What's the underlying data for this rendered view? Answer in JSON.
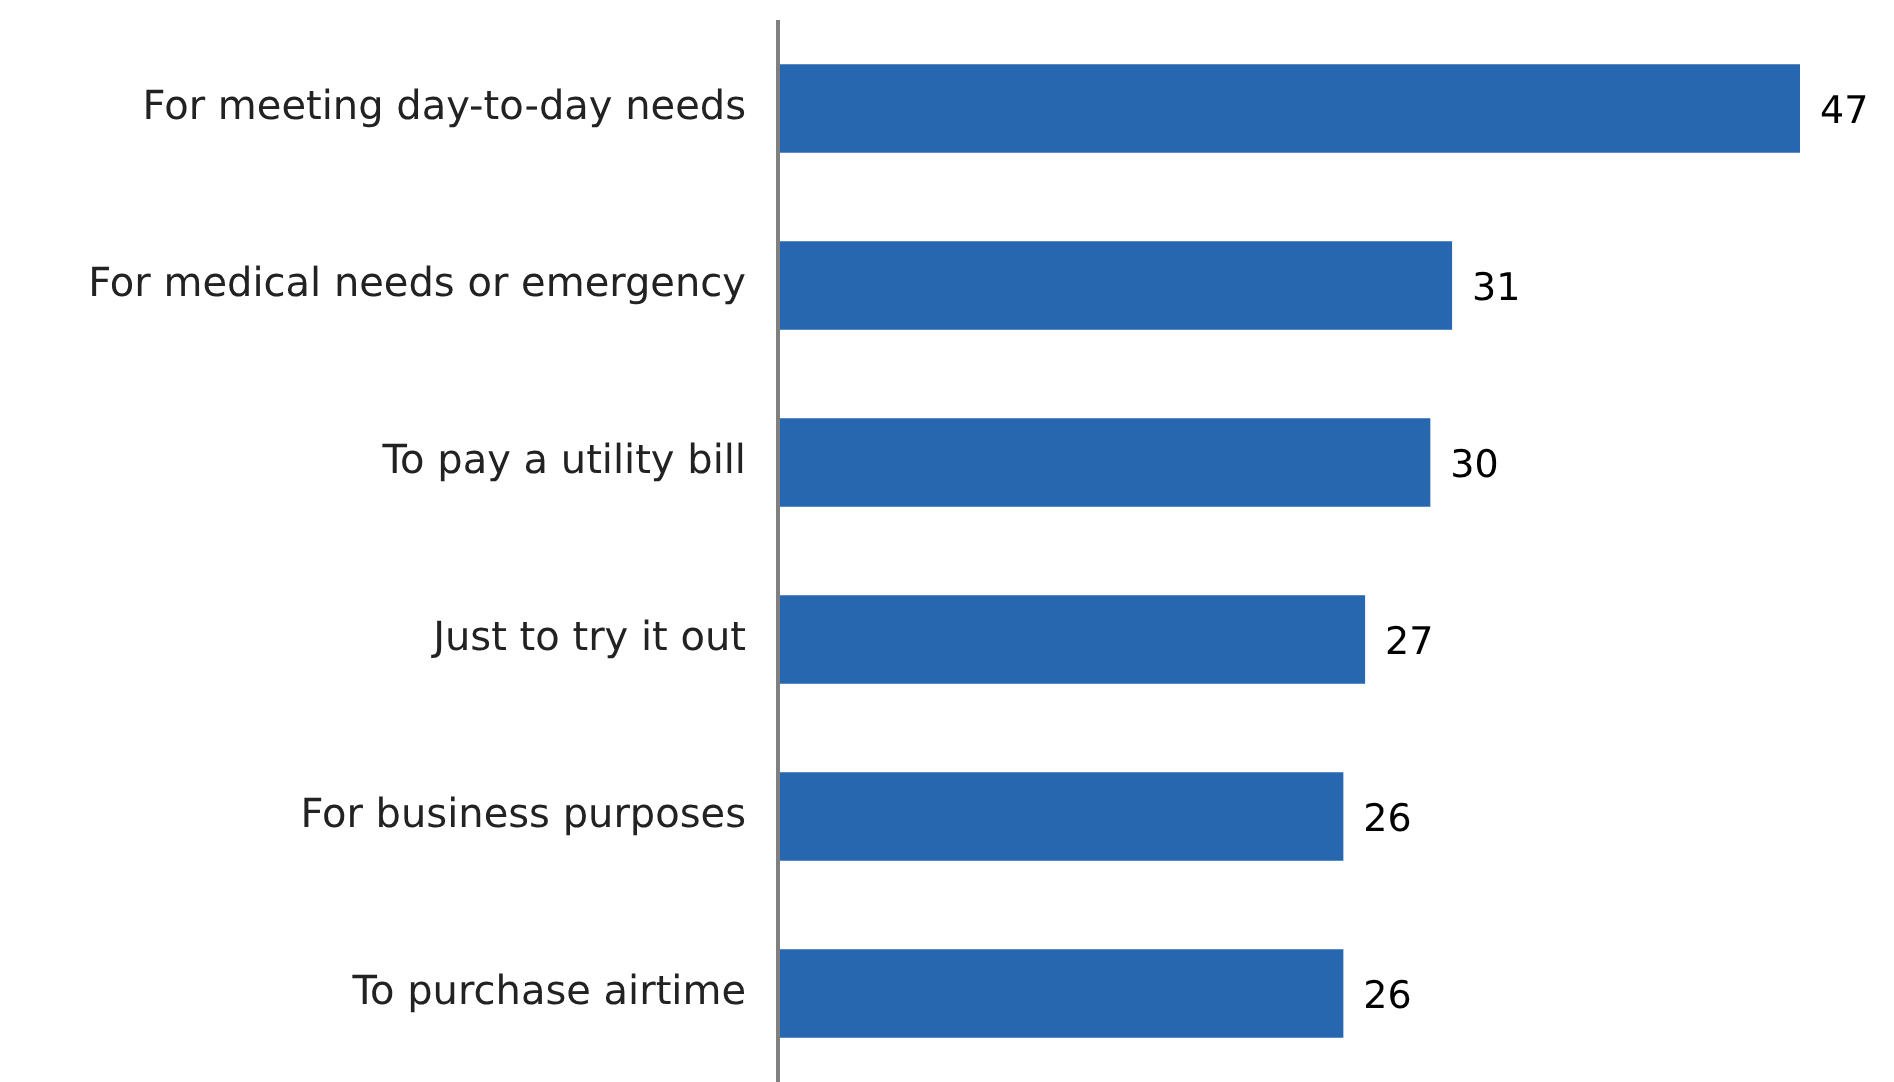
{
  "chart_data": {
    "type": "bar",
    "orientation": "horizontal",
    "categories": [
      "For meeting day-to-day needs",
      "For medical needs or emergency",
      "To pay a utility bill",
      "Just to try it out",
      "For business purposes",
      "To purchase airtime"
    ],
    "values": [
      47,
      31,
      30,
      27,
      26,
      26
    ],
    "color": "#2767b0",
    "data_labels": true
  }
}
